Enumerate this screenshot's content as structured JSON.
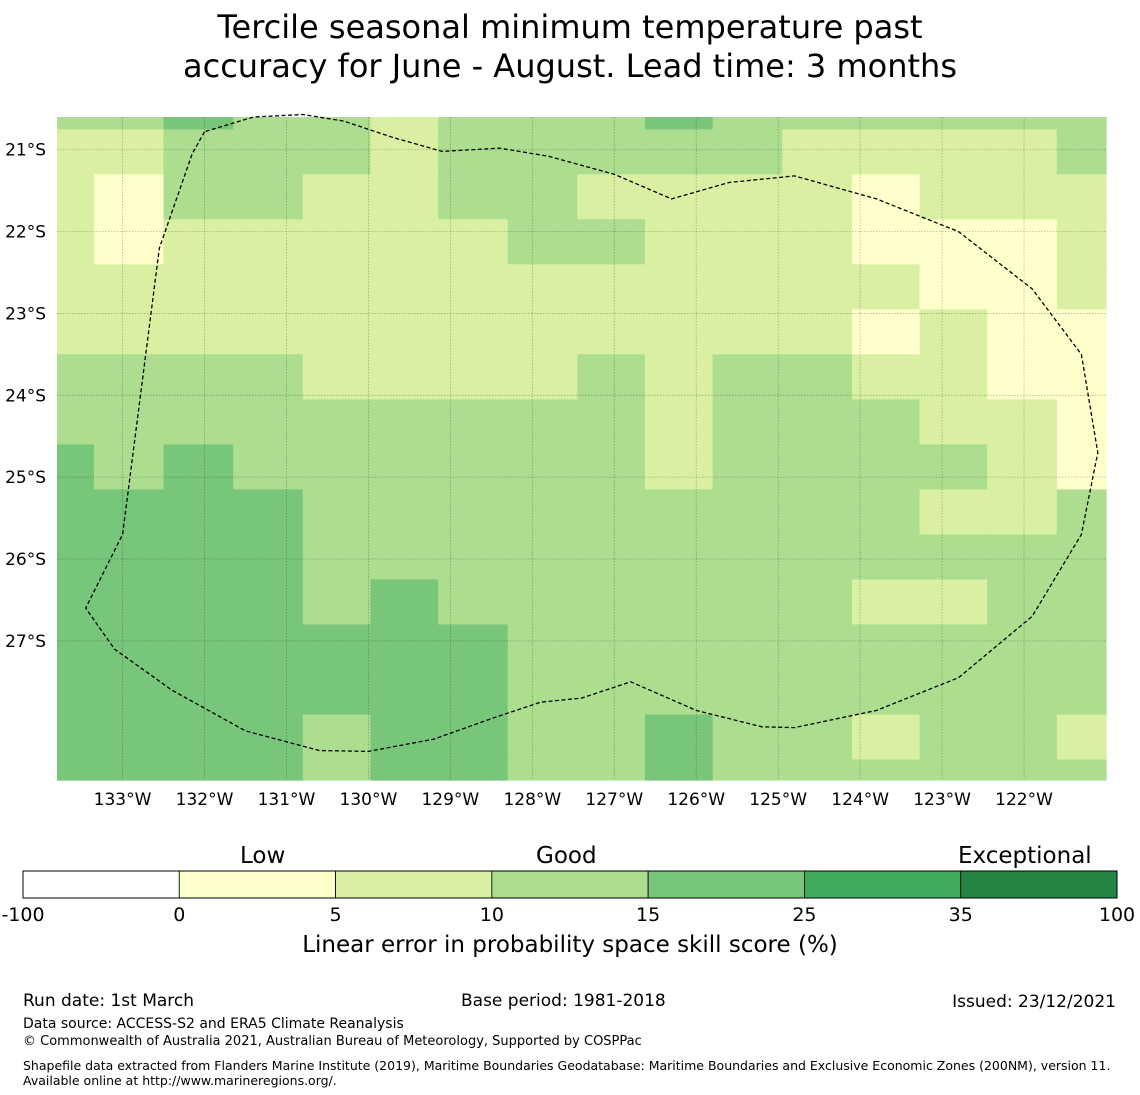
{
  "title_line1": "Tercile seasonal minimum temperature past",
  "title_line2": "accuracy for June - August. Lead time: 3 months",
  "map": {
    "lon_labels": [
      "133°W",
      "132°W",
      "131°W",
      "130°W",
      "129°W",
      "128°W",
      "127°W",
      "126°W",
      "125°W",
      "124°W",
      "123°W",
      "122°W"
    ],
    "lon_values": [
      -133,
      -132,
      -131,
      -130,
      -129,
      -128,
      -127,
      -126,
      -125,
      -124,
      -123,
      -122
    ],
    "lat_labels": [
      "21°S",
      "22°S",
      "23°S",
      "24°S",
      "25°S",
      "26°S",
      "27°S"
    ],
    "lat_values": [
      -21,
      -22,
      -23,
      -24,
      -25,
      -26,
      -27
    ],
    "extent": {
      "lon_min": -133.8,
      "lon_max": -121.0,
      "lat_max": -20.6,
      "lat_min": -28.7
    },
    "cell_lon_edges": [
      -133.8,
      -133.35,
      -132.5,
      -131.65,
      -130.8,
      -129.975,
      -129.15,
      -128.3,
      -127.45,
      -126.625,
      -125.8,
      -124.95,
      -124.1,
      -123.275,
      -122.45,
      -121.6,
      -121.0
    ],
    "cell_lat_edges": [
      -20.6,
      -20.75,
      -21.3,
      -21.85,
      -22.4,
      -22.95,
      -23.5,
      -24.05,
      -24.6,
      -25.15,
      -25.7,
      -26.25,
      -26.8,
      -27.35,
      -27.9,
      -28.45,
      -28.7
    ],
    "grid_levels": [
      [
        3,
        3,
        4,
        3,
        3,
        2,
        3,
        3,
        3,
        4,
        3,
        3,
        3,
        3,
        3,
        3
      ],
      [
        2,
        2,
        3,
        3,
        3,
        2,
        3,
        3,
        3,
        3,
        3,
        2,
        2,
        2,
        2,
        3
      ],
      [
        2,
        1,
        3,
        3,
        2,
        2,
        3,
        3,
        2,
        2,
        2,
        2,
        1,
        2,
        2,
        2
      ],
      [
        2,
        1,
        2,
        2,
        2,
        2,
        2,
        3,
        3,
        2,
        2,
        2,
        1,
        1,
        1,
        2
      ],
      [
        2,
        2,
        2,
        2,
        2,
        2,
        2,
        2,
        2,
        2,
        2,
        2,
        2,
        1,
        1,
        2
      ],
      [
        2,
        2,
        2,
        2,
        2,
        2,
        2,
        2,
        2,
        2,
        2,
        2,
        1,
        2,
        1,
        1
      ],
      [
        3,
        3,
        3,
        3,
        2,
        2,
        2,
        2,
        3,
        2,
        3,
        3,
        2,
        2,
        1,
        1
      ],
      [
        3,
        3,
        3,
        3,
        3,
        3,
        3,
        3,
        3,
        2,
        3,
        3,
        3,
        2,
        2,
        1
      ],
      [
        4,
        3,
        4,
        3,
        3,
        3,
        3,
        3,
        3,
        2,
        3,
        3,
        3,
        3,
        2,
        1
      ],
      [
        4,
        4,
        4,
        4,
        3,
        3,
        3,
        3,
        3,
        3,
        3,
        3,
        3,
        2,
        2,
        3
      ],
      [
        4,
        4,
        4,
        4,
        3,
        3,
        3,
        3,
        3,
        3,
        3,
        3,
        3,
        3,
        3,
        3
      ],
      [
        4,
        4,
        4,
        4,
        3,
        4,
        3,
        3,
        3,
        3,
        3,
        3,
        2,
        2,
        3,
        3
      ],
      [
        4,
        4,
        4,
        4,
        4,
        4,
        4,
        3,
        3,
        3,
        3,
        3,
        3,
        3,
        3,
        3
      ],
      [
        4,
        4,
        4,
        4,
        4,
        4,
        4,
        3,
        3,
        3,
        3,
        3,
        3,
        3,
        3,
        3
      ],
      [
        4,
        4,
        4,
        4,
        3,
        4,
        4,
        3,
        3,
        4,
        3,
        3,
        2,
        3,
        3,
        2
      ],
      [
        4,
        4,
        4,
        4,
        3,
        4,
        4,
        3,
        3,
        4,
        3,
        3,
        3,
        3,
        3,
        3
      ]
    ],
    "boundary_lonlat": [
      [
        -132.0,
        -20.78
      ],
      [
        -132.15,
        -21.05
      ],
      [
        -132.55,
        -22.2
      ],
      [
        -133.0,
        -25.7
      ],
      [
        -133.45,
        -26.6
      ],
      [
        -133.1,
        -27.1
      ],
      [
        -132.4,
        -27.6
      ],
      [
        -131.5,
        -28.1
      ],
      [
        -130.6,
        -28.34
      ],
      [
        -130.0,
        -28.35
      ],
      [
        -129.2,
        -28.2
      ],
      [
        -128.5,
        -27.95
      ],
      [
        -127.9,
        -27.75
      ],
      [
        -127.4,
        -27.7
      ],
      [
        -126.8,
        -27.5
      ],
      [
        -126.0,
        -27.85
      ],
      [
        -125.2,
        -28.05
      ],
      [
        -124.8,
        -28.06
      ],
      [
        -123.8,
        -27.85
      ],
      [
        -122.8,
        -27.45
      ],
      [
        -121.9,
        -26.7
      ],
      [
        -121.3,
        -25.7
      ],
      [
        -121.1,
        -24.7
      ],
      [
        -121.3,
        -23.5
      ],
      [
        -121.9,
        -22.7
      ],
      [
        -122.8,
        -22.0
      ],
      [
        -123.8,
        -21.6
      ],
      [
        -124.8,
        -21.32
      ],
      [
        -125.6,
        -21.4
      ],
      [
        -126.3,
        -21.6
      ],
      [
        -127.0,
        -21.3
      ],
      [
        -127.8,
        -21.08
      ],
      [
        -128.4,
        -20.98
      ],
      [
        -129.1,
        -21.02
      ],
      [
        -129.7,
        -20.85
      ],
      [
        -130.3,
        -20.65
      ],
      [
        -130.8,
        -20.57
      ],
      [
        -131.4,
        -20.6
      ],
      [
        -132.0,
        -20.78
      ]
    ]
  },
  "colorbar": {
    "category_labels": [
      "Low",
      "Good",
      "Exceptional"
    ],
    "tick_labels": [
      "-100",
      "0",
      "5",
      "10",
      "15",
      "25",
      "35",
      "100"
    ],
    "colors": [
      "#ffffff",
      "#ffffcc",
      "#d9f0a3",
      "#addd8e",
      "#78c679",
      "#41ab5d",
      "#238443"
    ],
    "axis_label": "Linear error in probability space skill score (%)"
  },
  "footer": {
    "run_date": "Run date: 1st March",
    "base_period": "Base period: 1981-2018",
    "issued": "Issued: 23/12/2021",
    "data_source": "Data source: ACCESS-S2 and ERA5 Climate Reanalysis",
    "copyright": "© Commonwealth of Australia 2021, Australian Bureau of Meteorology, Supported by COSPPac",
    "shapefile": "Shapefile data extracted from Flanders Marine Institute (2019), Maritime Boundaries Geodatabase: Maritime Boundaries and Exclusive Economic Zones (200NM), version 11. Available online at http://www.marineregions.org/."
  }
}
